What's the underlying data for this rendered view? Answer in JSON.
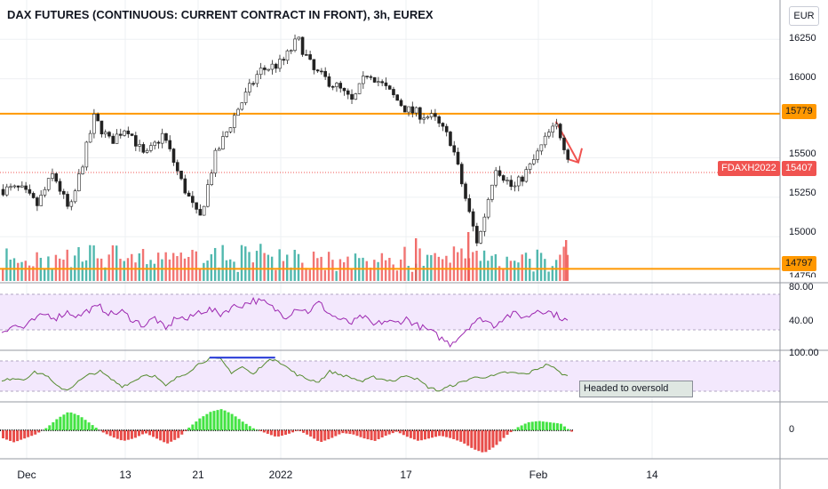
{
  "header": {
    "title": "DAX FUTURES (CONTINUOUS: CURRENT CONTRACT IN FRONT), 3h, EUREX",
    "currency_button": "EUR"
  },
  "price_axis": {
    "ticks": [
      "16250",
      "16000",
      "15750",
      "15500",
      "15250",
      "15000",
      "14750"
    ]
  },
  "rsi_axis": {
    "ticks": [
      "80.00",
      "40.00"
    ]
  },
  "osc_axis": {
    "ticks": [
      "100.00"
    ]
  },
  "hist_axis": {
    "ticks": [
      "0"
    ]
  },
  "time_axis": {
    "ticks": [
      "Dec",
      "13",
      "21",
      "2022",
      "17",
      "Feb",
      "14"
    ]
  },
  "price_tags": {
    "symbol": "FDAXH2022",
    "last": "15407",
    "resistance": "15779",
    "support": "14797"
  },
  "annotations": {
    "note": "Headed to oversold"
  },
  "colors": {
    "up": "#26a69a",
    "down": "#ef5350",
    "level_line": "#ff9800",
    "rsi_line": "#9c27b0",
    "osc_line": "#558b2f",
    "band_fill": "#f3e8fd",
    "trend_arrow": "#f05350",
    "divergence_line": "#1f33d6"
  },
  "chart_data": [
    {
      "type": "candlestick",
      "title": "DAX FUTURES (CONTINUOUS: CURRENT CONTRACT IN FRONT), 3h, EUREX",
      "ylim": [
        14720,
        16330
      ],
      "horizontal_levels": [
        15779,
        14797
      ],
      "last_price": 15407,
      "x_ticks": [
        "Dec",
        "13",
        "21",
        "2022",
        "17",
        "Feb",
        "14"
      ],
      "close_path": [
        [
          "Nov 30",
          15300
        ],
        [
          "Dec 2",
          15200
        ],
        [
          "Dec 4",
          15400
        ],
        [
          "Dec 6",
          15150
        ],
        [
          "Dec 9",
          15750
        ],
        [
          "Dec 11",
          15600
        ],
        [
          "Dec 13",
          15700
        ],
        [
          "Dec 15",
          15500
        ],
        [
          "Dec 17",
          15650
        ],
        [
          "Dec 19",
          15350
        ],
        [
          "Dec 21",
          15100
        ],
        [
          "Dec 23",
          15500
        ],
        [
          "Dec 26",
          15800
        ],
        [
          "Dec 29",
          16050
        ],
        [
          "Jan 1",
          16100
        ],
        [
          "Jan 3",
          16250
        ],
        [
          "Jan 5",
          16050
        ],
        [
          "Jan 8",
          15950
        ],
        [
          "Jan 10",
          15850
        ],
        [
          "Jan 12",
          16050
        ],
        [
          "Jan 15",
          15900
        ],
        [
          "Jan 17",
          15800
        ],
        [
          "Jan 20",
          15750
        ],
        [
          "Jan 22",
          15600
        ],
        [
          "Jan 24",
          15150
        ],
        [
          "Jan 25",
          14950
        ],
        [
          "Jan 27",
          15450
        ],
        [
          "Jan 29",
          15300
        ],
        [
          "Jan 31",
          15450
        ],
        [
          "Feb 2",
          15650
        ],
        [
          "Feb 3",
          15700
        ],
        [
          "Feb 4",
          15550
        ],
        [
          "Feb 5",
          15407
        ]
      ]
    },
    {
      "type": "line",
      "name_hint": "RSI",
      "ylim": [
        30,
        85
      ],
      "band": [
        30,
        70
      ],
      "values": [
        45,
        50,
        48,
        55,
        60,
        57,
        62,
        58,
        64,
        66,
        60,
        62,
        55,
        50,
        57,
        46,
        58,
        55,
        62,
        64,
        60,
        66,
        68,
        72,
        70,
        64,
        58,
        66,
        62,
        70,
        60,
        55,
        52,
        58,
        50,
        54,
        52,
        56,
        50,
        46,
        40,
        34,
        42,
        52,
        56,
        50,
        58,
        60,
        57,
        64,
        62,
        58,
        52
      ]
    },
    {
      "type": "line",
      "name_hint": "Oscillator",
      "ylim": [
        0,
        100
      ],
      "values": [
        40,
        48,
        45,
        60,
        55,
        30,
        22,
        40,
        55,
        62,
        45,
        30,
        40,
        55,
        52,
        30,
        48,
        60,
        78,
        90,
        88,
        60,
        72,
        55,
        80,
        90,
        72,
        55,
        45,
        40,
        62,
        55,
        48,
        40,
        50,
        44,
        42,
        55,
        45,
        28,
        20,
        30,
        38,
        48,
        50,
        52,
        60,
        58,
        56,
        68,
        78,
        60,
        48
      ],
      "divergence_segment": {
        "from_index": 19,
        "to_index": 25
      },
      "annotation": "Headed to oversold"
    },
    {
      "type": "bar",
      "name_hint": "Momentum histogram",
      "zero_label": "0",
      "values": [
        -30,
        -45,
        -30,
        -15,
        10,
        45,
        70,
        55,
        25,
        -5,
        -25,
        -40,
        -30,
        -10,
        -30,
        -50,
        -30,
        10,
        45,
        70,
        80,
        60,
        30,
        5,
        -10,
        -25,
        -15,
        0,
        -20,
        -45,
        -30,
        -10,
        -15,
        -30,
        -40,
        -20,
        -5,
        -25,
        -40,
        -30,
        -20,
        -30,
        -45,
        -70,
        -85,
        -60,
        -20,
        10,
        30,
        35,
        30,
        25,
        -5
      ]
    }
  ]
}
